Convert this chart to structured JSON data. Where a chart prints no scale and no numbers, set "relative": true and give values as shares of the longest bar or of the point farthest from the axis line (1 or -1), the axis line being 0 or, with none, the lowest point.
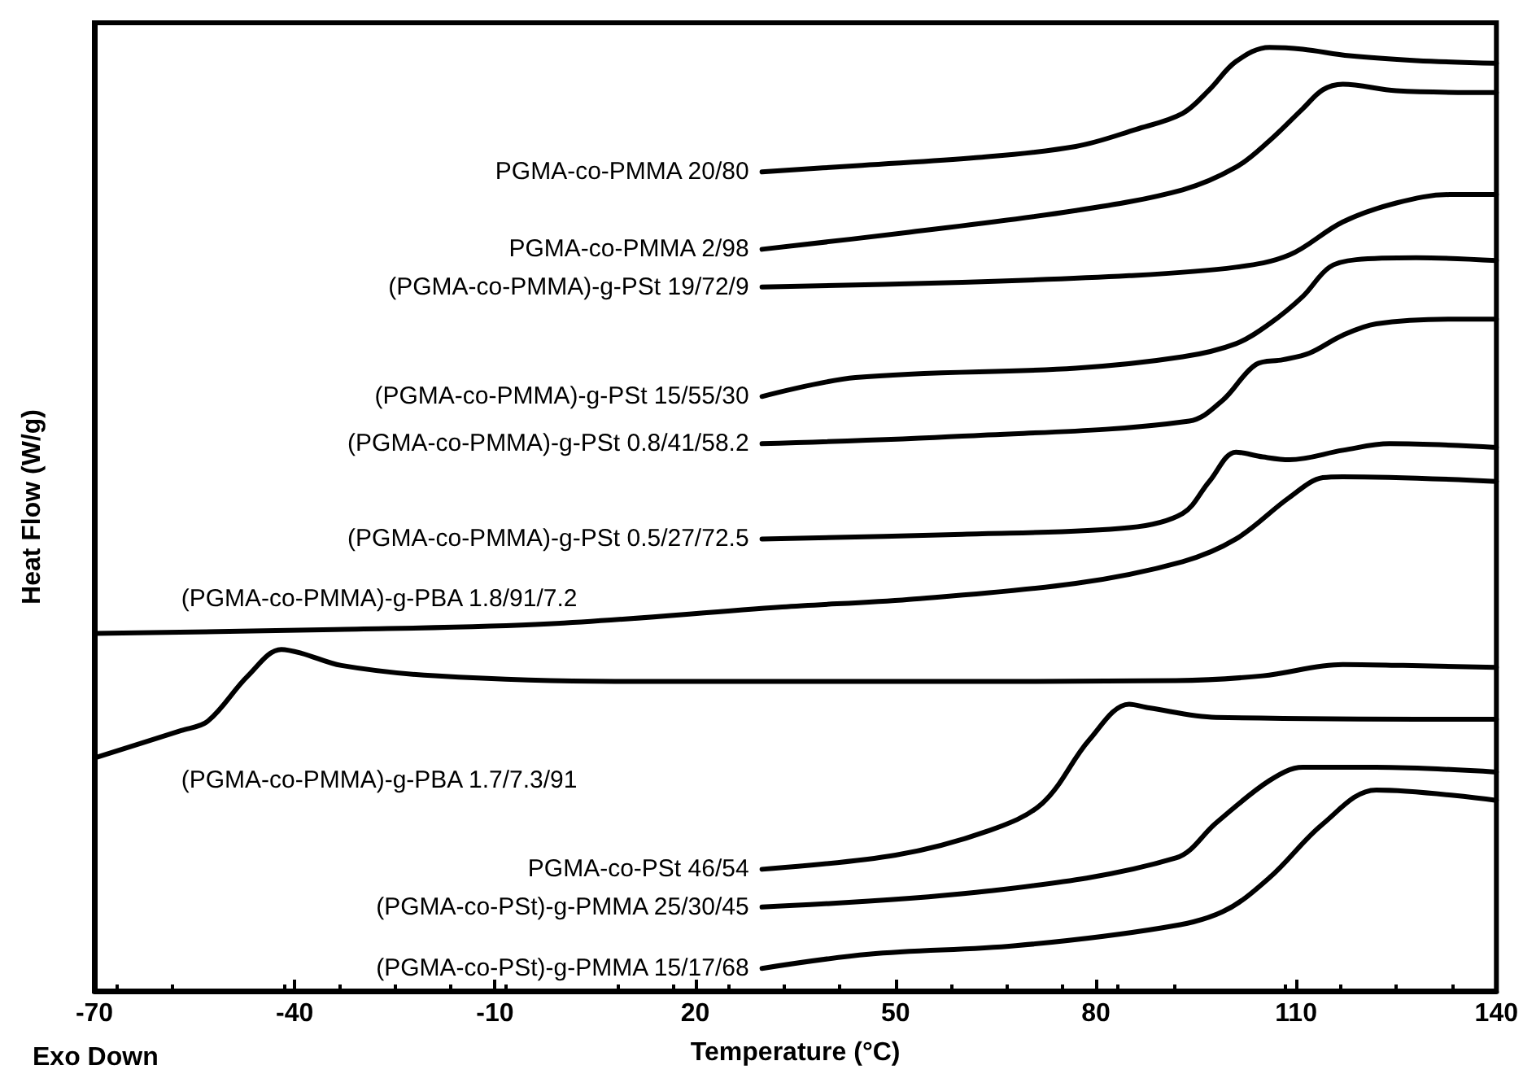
{
  "chart_data": {
    "type": "line",
    "relative": true,
    "xlabel": "Temperature (°C)",
    "ylabel": "Heat Flow (W/g)",
    "annotations": [
      "Exo Down"
    ],
    "xlim": [
      -70,
      140
    ],
    "xticks": [
      -70,
      -40,
      -10,
      20,
      50,
      80,
      110,
      140
    ],
    "grid": false,
    "legend": false,
    "marker": "none",
    "line_style": "solid",
    "series": [
      {
        "name": "PGMA-co-PMMA 20/80",
        "color": "#000000",
        "x": [
          30,
          45,
          62,
          77,
          86,
          93,
          97,
          101,
          106,
          111,
          118,
          128,
          140
        ],
        "values": [
          0.868,
          0.875,
          0.883,
          0.895,
          0.913,
          0.93,
          0.955,
          0.985,
          1.0,
          0.998,
          0.991,
          0.986,
          0.983
        ]
      },
      {
        "name": "PGMA-co-PMMA 2/98",
        "color": "#000000",
        "x": [
          30,
          52,
          77,
          93,
          101,
          106,
          111,
          114,
          117,
          125,
          140
        ],
        "values": [
          0.786,
          0.804,
          0.827,
          0.849,
          0.873,
          0.901,
          0.935,
          0.955,
          0.961,
          0.954,
          0.952
        ]
      },
      {
        "name": "(PGMA-co-PMMA)-g-PSt 19/72/9",
        "color": "#000000",
        "x": [
          30,
          60,
          85,
          101,
          109,
          117,
          125,
          133,
          140
        ],
        "values": [
          0.746,
          0.751,
          0.758,
          0.767,
          0.78,
          0.815,
          0.835,
          0.844,
          0.844
        ]
      },
      {
        "name": "(PGMA-co-PMMA)-g-PSt 15/55/30",
        "color": "#000000",
        "x": [
          30,
          44,
          77,
          93,
          101,
          106,
          111,
          115,
          119,
          128,
          140
        ],
        "values": [
          0.63,
          0.65,
          0.66,
          0.672,
          0.686,
          0.707,
          0.736,
          0.767,
          0.775,
          0.777,
          0.774
        ]
      },
      {
        "name": "(PGMA-co-PMMA)-g-PSt 0.8/41/58.2",
        "color": "#000000",
        "x": [
          30,
          60,
          94,
          99,
          104,
          108,
          112,
          117,
          122,
          133,
          140
        ],
        "values": [
          0.58,
          0.588,
          0.604,
          0.626,
          0.664,
          0.669,
          0.676,
          0.695,
          0.707,
          0.712,
          0.712
        ]
      },
      {
        "name": "(PGMA-co-PMMA)-g-PSt 0.5/27/72.5",
        "color": "#000000",
        "x": [
          30,
          60,
          85,
          93,
          97,
          101,
          105,
          109,
          117,
          124,
          140
        ],
        "values": [
          0.479,
          0.484,
          0.491,
          0.506,
          0.54,
          0.571,
          0.566,
          0.563,
          0.573,
          0.58,
          0.576
        ]
      },
      {
        "name": "(PGMA-co-PMMA)-g-PBA 1.8/91/7.2",
        "color": "#000000",
        "x": [
          -70,
          -34,
          -2,
          33,
          52,
          77,
          93,
          101,
          109,
          114,
          117,
          140
        ],
        "values": [
          0.379,
          0.383,
          0.389,
          0.407,
          0.415,
          0.432,
          0.455,
          0.479,
          0.523,
          0.544,
          0.545,
          0.54
        ]
      },
      {
        "name": "(PGMA-co-PMMA)-g-PBA 1.7/7.3/91",
        "color": "#000000",
        "x": [
          -70,
          -57,
          -53,
          -47,
          -42,
          -39,
          -33,
          -19,
          8,
          50,
          92,
          105,
          117,
          126,
          140
        ],
        "values": [
          0.247,
          0.276,
          0.286,
          0.334,
          0.362,
          0.358,
          0.345,
          0.334,
          0.328,
          0.328,
          0.329,
          0.334,
          0.346,
          0.345,
          0.343
        ]
      },
      {
        "name": "PGMA-co-PSt 46/54",
        "color": "#000000",
        "x": [
          30,
          50,
          64,
          72,
          79,
          85,
          88,
          98,
          140
        ],
        "values": [
          0.129,
          0.144,
          0.17,
          0.199,
          0.266,
          0.304,
          0.3,
          0.29,
          0.288
        ]
      },
      {
        "name": "(PGMA-co-PSt)-g-PMMA 25/30/45",
        "color": "#000000",
        "x": [
          30,
          64,
          92,
          98,
          106,
          111,
          122,
          140
        ],
        "values": [
          0.089,
          0.106,
          0.141,
          0.178,
          0.223,
          0.237,
          0.237,
          0.232
        ]
      },
      {
        "name": "(PGMA-co-PSt)-g-PMMA 15/17/68",
        "color": "#000000",
        "x": [
          30,
          46,
          68,
          90,
          99,
          106,
          114,
          122,
          140
        ],
        "values": [
          0.024,
          0.039,
          0.048,
          0.067,
          0.084,
          0.12,
          0.177,
          0.213,
          0.202
        ]
      }
    ]
  }
}
